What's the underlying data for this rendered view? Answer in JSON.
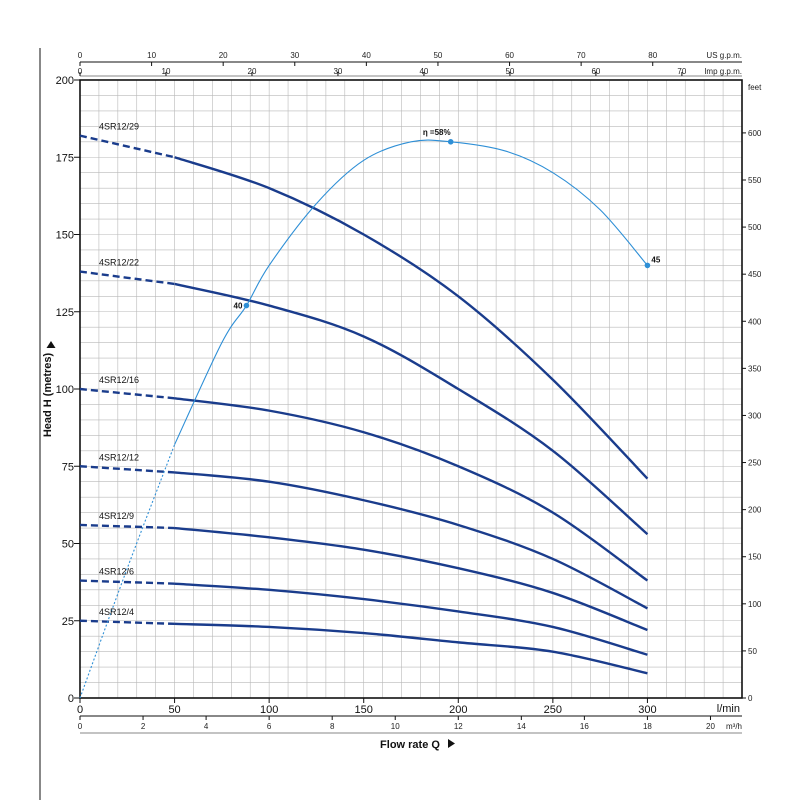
{
  "chart_data": {
    "type": "line",
    "title": "",
    "xlabel": "Flow rate Q",
    "ylabel": "Head H (metres)",
    "x_unit": "l/min",
    "xlim": [
      0,
      350
    ],
    "ylim": [
      0,
      200
    ],
    "x_ticks": [
      0,
      50,
      100,
      150,
      200,
      250,
      300
    ],
    "y_ticks": [
      0,
      25,
      50,
      75,
      100,
      125,
      150,
      175,
      200
    ],
    "secondary_axes": {
      "right": {
        "unit": "feet",
        "ticks": [
          0,
          50,
          100,
          150,
          200,
          250,
          300,
          350,
          400,
          450,
          500,
          550,
          600
        ]
      },
      "top_us": {
        "unit": "US g.p.m.",
        "ticks": [
          0,
          10,
          20,
          30,
          40,
          50,
          60,
          70,
          80
        ]
      },
      "top_imp": {
        "unit": "Imp g.p.m.",
        "ticks": [
          0,
          10,
          20,
          30,
          40,
          50,
          60,
          70
        ]
      },
      "bottom_m3h": {
        "unit": "m³/h",
        "ticks": [
          0,
          2,
          4,
          6,
          8,
          10,
          12,
          14,
          16,
          18,
          20
        ]
      }
    },
    "grid": true,
    "series": [
      {
        "name": "4SR12/29",
        "x": [
          0,
          50,
          100,
          150,
          200,
          250,
          300
        ],
        "y": [
          182,
          175,
          165,
          150,
          130,
          103,
          71
        ],
        "dashed_until": 50
      },
      {
        "name": "4SR12/22",
        "x": [
          0,
          50,
          100,
          150,
          200,
          250,
          300
        ],
        "y": [
          138,
          134,
          127,
          117,
          100,
          80,
          53
        ],
        "dashed_until": 50
      },
      {
        "name": "4SR12/16",
        "x": [
          0,
          50,
          100,
          150,
          200,
          250,
          300
        ],
        "y": [
          100,
          97,
          93,
          86,
          75,
          60,
          38
        ],
        "dashed_until": 50
      },
      {
        "name": "4SR12/12",
        "x": [
          0,
          50,
          100,
          150,
          200,
          250,
          300
        ],
        "y": [
          75,
          73,
          70,
          64,
          56,
          45,
          29
        ],
        "dashed_until": 50
      },
      {
        "name": "4SR12/9",
        "x": [
          0,
          50,
          100,
          150,
          200,
          250,
          300
        ],
        "y": [
          56,
          55,
          52,
          48,
          42,
          34,
          22
        ],
        "dashed_until": 50
      },
      {
        "name": "4SR12/6",
        "x": [
          0,
          50,
          100,
          150,
          200,
          250,
          300
        ],
        "y": [
          38,
          37,
          35,
          32,
          28,
          23,
          14
        ],
        "dashed_until": 50
      },
      {
        "name": "4SR12/4",
        "x": [
          0,
          50,
          100,
          150,
          200,
          250,
          300
        ],
        "y": [
          25,
          24,
          23,
          21,
          18,
          15,
          8
        ],
        "dashed_until": 50
      }
    ],
    "efficiency_curve": {
      "x": [
        0,
        25,
        50,
        75,
        88,
        100,
        125,
        150,
        175,
        196,
        225,
        250,
        275,
        300
      ],
      "y": [
        0,
        42,
        82,
        115,
        127,
        140,
        160,
        174,
        180,
        180,
        177,
        170,
        158,
        140
      ],
      "dashed_until": 50,
      "points": [
        {
          "label": "40",
          "x": 88,
          "y": 127
        },
        {
          "label": "η =58%",
          "x": 196,
          "y": 180
        },
        {
          "label": "45",
          "x": 300,
          "y": 140
        }
      ]
    },
    "colors": {
      "curve": "#1a3c8c",
      "efficiency": "#2e8fd6",
      "grid": "#b9b9b9",
      "axis": "#111111"
    }
  }
}
